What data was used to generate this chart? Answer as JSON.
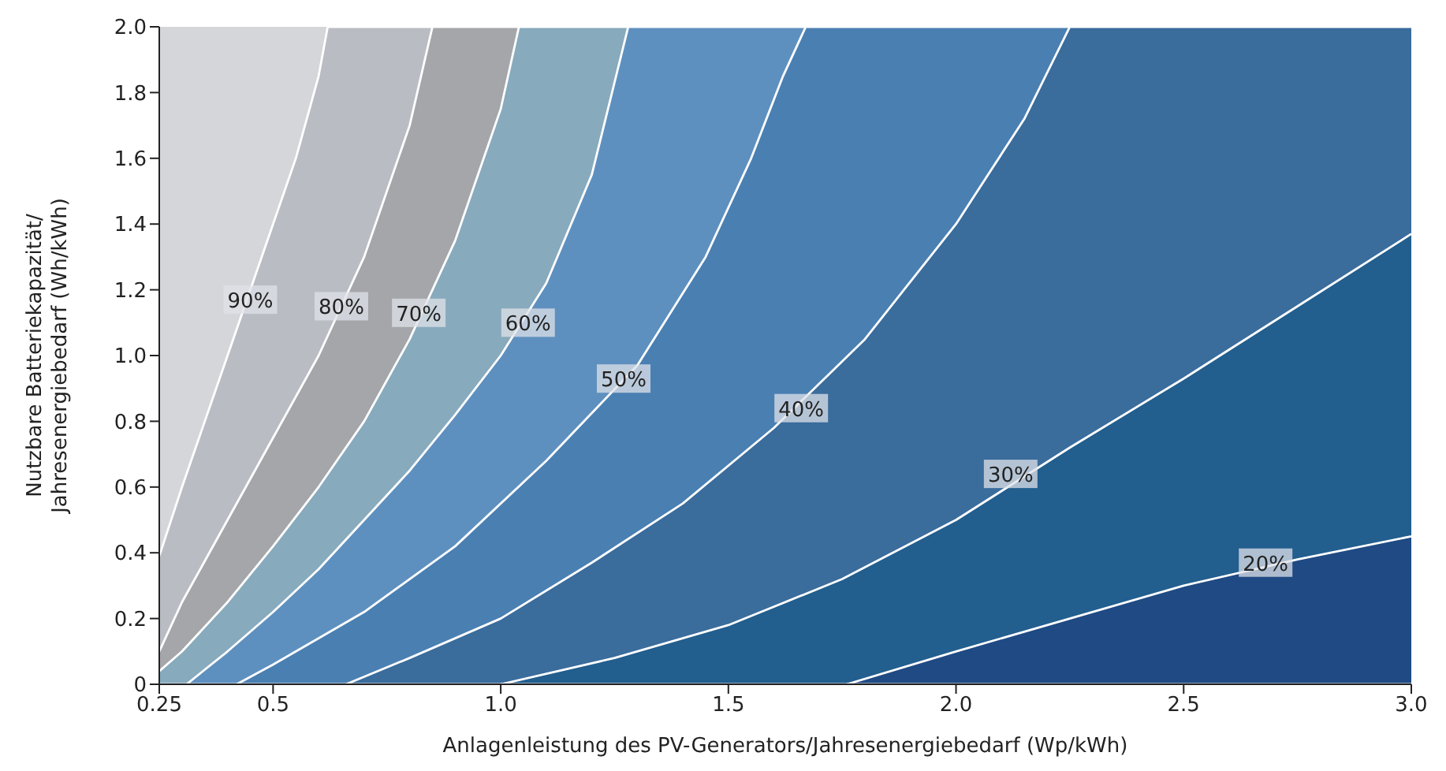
{
  "chart_data": {
    "type": "area",
    "xlabel": "Anlagenleistung des PV-Generators/Jahresenergiebedarf (Wp/kWh)",
    "ylabel": "Nutzbare Batteriekapazität/\nJahresenergiebedarf (Wh/kWh)",
    "xlim": [
      0.25,
      3.0
    ],
    "xticks": [
      0.25,
      0.5,
      {
        "value": 1,
        "label": "1.0"
      },
      1.5,
      {
        "value": 2,
        "label": "2.0"
      },
      2.5,
      {
        "value": 3,
        "label": "3.0"
      }
    ],
    "ylim": [
      0,
      2.0
    ],
    "yticks": [
      0,
      0.2,
      0.4,
      0.6,
      0.8,
      {
        "value": 1,
        "label": "1.0"
      },
      1.2,
      1.4,
      1.6,
      1.8,
      {
        "value": 2,
        "label": "2.0"
      }
    ],
    "grid": false,
    "legend": false,
    "marker": "none",
    "series": [
      {
        "color": "#b9bcc2",
        "x": [
          0.25,
          0.3,
          0.35,
          0.4,
          0.5,
          0.55,
          0.6,
          0.62,
          0.85
        ],
        "values": [
          0.39,
          0.6,
          0.8,
          1.0,
          1.4,
          1.6,
          1.85,
          2.0,
          2.0
        ]
      },
      {
        "color": "#a4a6aa",
        "x": [
          0.25,
          0.3,
          0.4,
          0.5,
          0.6,
          0.7,
          0.8,
          0.85,
          1.04
        ],
        "values": [
          0.1,
          0.25,
          0.5,
          0.75,
          1.0,
          1.3,
          1.7,
          2.0,
          2.0
        ]
      },
      {
        "color": "#87aabd",
        "x": [
          0.25,
          0.3,
          0.4,
          0.5,
          0.6,
          0.7,
          0.8,
          0.9,
          1.0,
          1.04,
          1.28
        ],
        "values": [
          0.04,
          0.1,
          0.25,
          0.42,
          0.6,
          0.8,
          1.05,
          1.35,
          1.75,
          2.0,
          2.0
        ]
      },
      {
        "color": "#5e90bf",
        "x": [
          0.31,
          0.4,
          0.5,
          0.6,
          0.7,
          0.8,
          0.9,
          1.0,
          1.1,
          1.2,
          1.28,
          1.67
        ],
        "values": [
          0,
          0.1,
          0.22,
          0.35,
          0.5,
          0.65,
          0.82,
          1.0,
          1.22,
          1.55,
          2.0,
          2.0
        ]
      },
      {
        "color": "#4a7fb2",
        "x": [
          0.42,
          0.5,
          0.7,
          0.9,
          1.1,
          1.3,
          1.45,
          1.55,
          1.62,
          1.67,
          2.25
        ],
        "values": [
          0,
          0.06,
          0.22,
          0.42,
          0.68,
          0.97,
          1.3,
          1.6,
          1.85,
          2.0,
          2.0
        ]
      },
      {
        "color": "#3a6c9c",
        "x": [
          0.66,
          0.8,
          1.0,
          1.2,
          1.4,
          1.6,
          1.8,
          2.0,
          2.15,
          2.25,
          3.0
        ],
        "values": [
          0,
          0.08,
          0.2,
          0.37,
          0.55,
          0.78,
          1.05,
          1.4,
          1.72,
          2.0,
          2.0
        ]
      },
      {
        "color": "#225e8e",
        "x": [
          1.0,
          1.25,
          1.5,
          1.75,
          2.0,
          2.25,
          2.5,
          2.75,
          3.0
        ],
        "values": [
          0,
          0.08,
          0.18,
          0.32,
          0.5,
          0.72,
          0.93,
          1.15,
          1.37
        ]
      },
      {
        "color": "#1f4a84",
        "x": [
          1.76,
          2.0,
          2.25,
          2.5,
          2.75,
          3.0
        ],
        "values": [
          0,
          0.1,
          0.2,
          0.3,
          0.38,
          0.45
        ]
      }
    ],
    "annotations": [
      {
        "text": "90%",
        "x": 0.45,
        "y": 1.17
      },
      {
        "text": "80%",
        "x": 0.65,
        "y": 1.15
      },
      {
        "text": "70%",
        "x": 0.82,
        "y": 1.13
      },
      {
        "text": "60%",
        "x": 1.06,
        "y": 1.1
      },
      {
        "text": "50%",
        "x": 1.27,
        "y": 0.93
      },
      {
        "text": "40%",
        "x": 1.66,
        "y": 0.84
      },
      {
        "text": "30%",
        "x": 2.12,
        "y": 0.64
      },
      {
        "text": "20%",
        "x": 2.68,
        "y": 0.37
      }
    ]
  }
}
